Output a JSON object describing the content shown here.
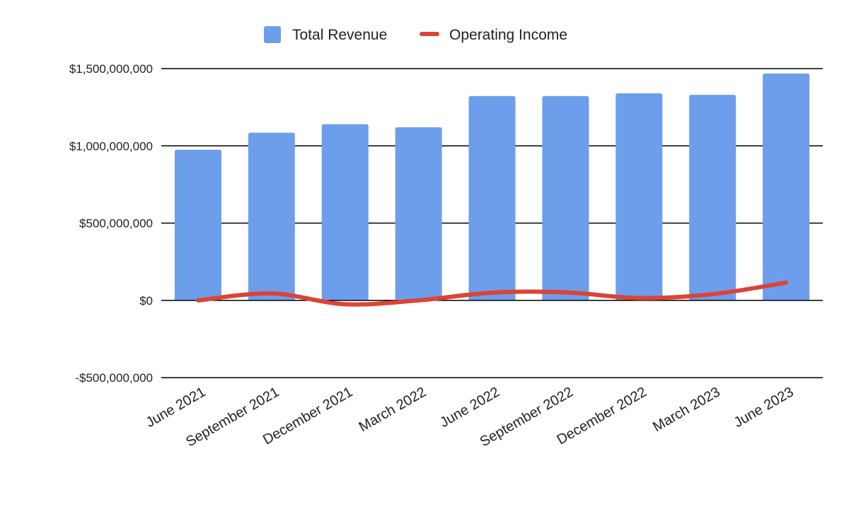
{
  "chart_data": {
    "type": "bar",
    "categories": [
      "June 2021",
      "September 2021",
      "December 2021",
      "March 2022",
      "June 2022",
      "September 2022",
      "December 2022",
      "March 2023",
      "June 2023"
    ],
    "series": [
      {
        "name": "Total Revenue",
        "type": "bar",
        "color": "#6d9eeb",
        "values": [
          975000000,
          1085000000,
          1140000000,
          1120000000,
          1322000000,
          1322000000,
          1340000000,
          1330000000,
          1468000000
        ]
      },
      {
        "name": "Operating Income",
        "type": "line",
        "smooth": true,
        "color": "#db4437",
        "values": [
          0,
          45000000,
          -25000000,
          0,
          50000000,
          52000000,
          15000000,
          40000000,
          115000000
        ]
      }
    ],
    "ylim": [
      -500000000,
      1500000000
    ],
    "yticks": [
      -500000000,
      0,
      500000000,
      1000000000,
      1500000000
    ],
    "ytick_labels": [
      "-$500,000,000",
      "$0",
      "$500,000,000",
      "$1,000,000,000",
      "$1,500,000,000"
    ],
    "xtick_rotation": -30,
    "grid": true,
    "legend_position": "top-center",
    "title": "",
    "xlabel": "",
    "ylabel": ""
  }
}
